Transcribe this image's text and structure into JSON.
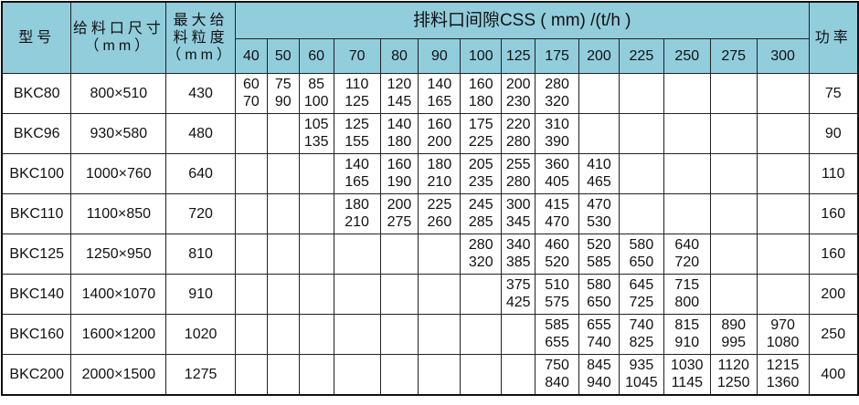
{
  "header": {
    "model": "型号",
    "feed_opening": [
      "给料口尺寸",
      "（mm）"
    ],
    "max_feed": [
      "最大给",
      "料粒度",
      "（mm）"
    ],
    "css_title": "排料口间隙CSS ( mm) /(t/h )",
    "power": "功率",
    "css_values": [
      "40",
      "50",
      "60",
      "70",
      "80",
      "90",
      "100",
      "125",
      "175",
      "200",
      "225",
      "250",
      "275",
      "300"
    ]
  },
  "header_color": "#92cddc",
  "rows": [
    {
      "model": "BKC80",
      "opening": "800×510",
      "feed": "430",
      "power": "75",
      "cells": [
        [
          "60",
          "70"
        ],
        [
          "75",
          "90"
        ],
        [
          "85",
          "100"
        ],
        [
          "110",
          "125"
        ],
        [
          "120",
          "145"
        ],
        [
          "140",
          "165"
        ],
        [
          "160",
          "180"
        ],
        [
          "200",
          "230"
        ],
        [
          "280",
          "320"
        ],
        [],
        [],
        [],
        [],
        []
      ]
    },
    {
      "model": "BKC96",
      "opening": "930×580",
      "feed": "480",
      "power": "90",
      "cells": [
        [],
        [],
        [
          "105",
          "135"
        ],
        [
          "125",
          "155"
        ],
        [
          "140",
          "180"
        ],
        [
          "160",
          "200"
        ],
        [
          "175",
          "225"
        ],
        [
          "220",
          "280"
        ],
        [
          "310",
          "390"
        ],
        [],
        [],
        [],
        [],
        []
      ]
    },
    {
      "model": "BKC100",
      "opening": "1000×760",
      "feed": "640",
      "power": "110",
      "cells": [
        [],
        [],
        [],
        [
          "140",
          "165"
        ],
        [
          "160",
          "190"
        ],
        [
          "180",
          "210"
        ],
        [
          "205",
          "235"
        ],
        [
          "255",
          "280"
        ],
        [
          "360",
          "405"
        ],
        [
          "410",
          "465"
        ],
        [],
        [],
        [],
        []
      ]
    },
    {
      "model": "BKC110",
      "opening": "1100×850",
      "feed": "720",
      "power": "160",
      "cells": [
        [],
        [],
        [],
        [
          "180",
          "210"
        ],
        [
          "200",
          "275"
        ],
        [
          "225",
          "260"
        ],
        [
          "245",
          "285"
        ],
        [
          "300",
          "345"
        ],
        [
          "415",
          "470"
        ],
        [
          "470",
          "530"
        ],
        [],
        [],
        [],
        []
      ]
    },
    {
      "model": "BKC125",
      "opening": "1250×950",
      "feed": "810",
      "power": "160",
      "cells": [
        [],
        [],
        [],
        [],
        [],
        [],
        [
          "280",
          "320"
        ],
        [
          "340",
          "385"
        ],
        [
          "460",
          "520"
        ],
        [
          "520",
          "585"
        ],
        [
          "580",
          "650"
        ],
        [
          "640",
          "720"
        ],
        [],
        []
      ]
    },
    {
      "model": "BKC140",
      "opening": "1400×1070",
      "feed": "910",
      "power": "200",
      "cells": [
        [],
        [],
        [],
        [],
        [],
        [],
        [],
        [
          "375",
          "425"
        ],
        [
          "510",
          "575"
        ],
        [
          "580",
          "650"
        ],
        [
          "645",
          "725"
        ],
        [
          "715",
          "800"
        ],
        [],
        []
      ]
    },
    {
      "model": "BKC160",
      "opening": "1600×1200",
      "feed": "1020",
      "power": "250",
      "cells": [
        [],
        [],
        [],
        [],
        [],
        [],
        [],
        [],
        [
          "585",
          "655"
        ],
        [
          "655",
          "740"
        ],
        [
          "740",
          "825"
        ],
        [
          "815",
          "910"
        ],
        [
          "890",
          "995"
        ],
        [
          "970",
          "1080"
        ]
      ]
    },
    {
      "model": "BKC200",
      "opening": "2000×1500",
      "feed": "1275",
      "power": "400",
      "cells": [
        [],
        [],
        [],
        [],
        [],
        [],
        [],
        [],
        [
          "750",
          "840"
        ],
        [
          "845",
          "940"
        ],
        [
          "935",
          "1045"
        ],
        [
          "1030",
          "1145"
        ],
        [
          "1120",
          "1250"
        ],
        [
          "1215",
          "1360"
        ]
      ]
    }
  ]
}
